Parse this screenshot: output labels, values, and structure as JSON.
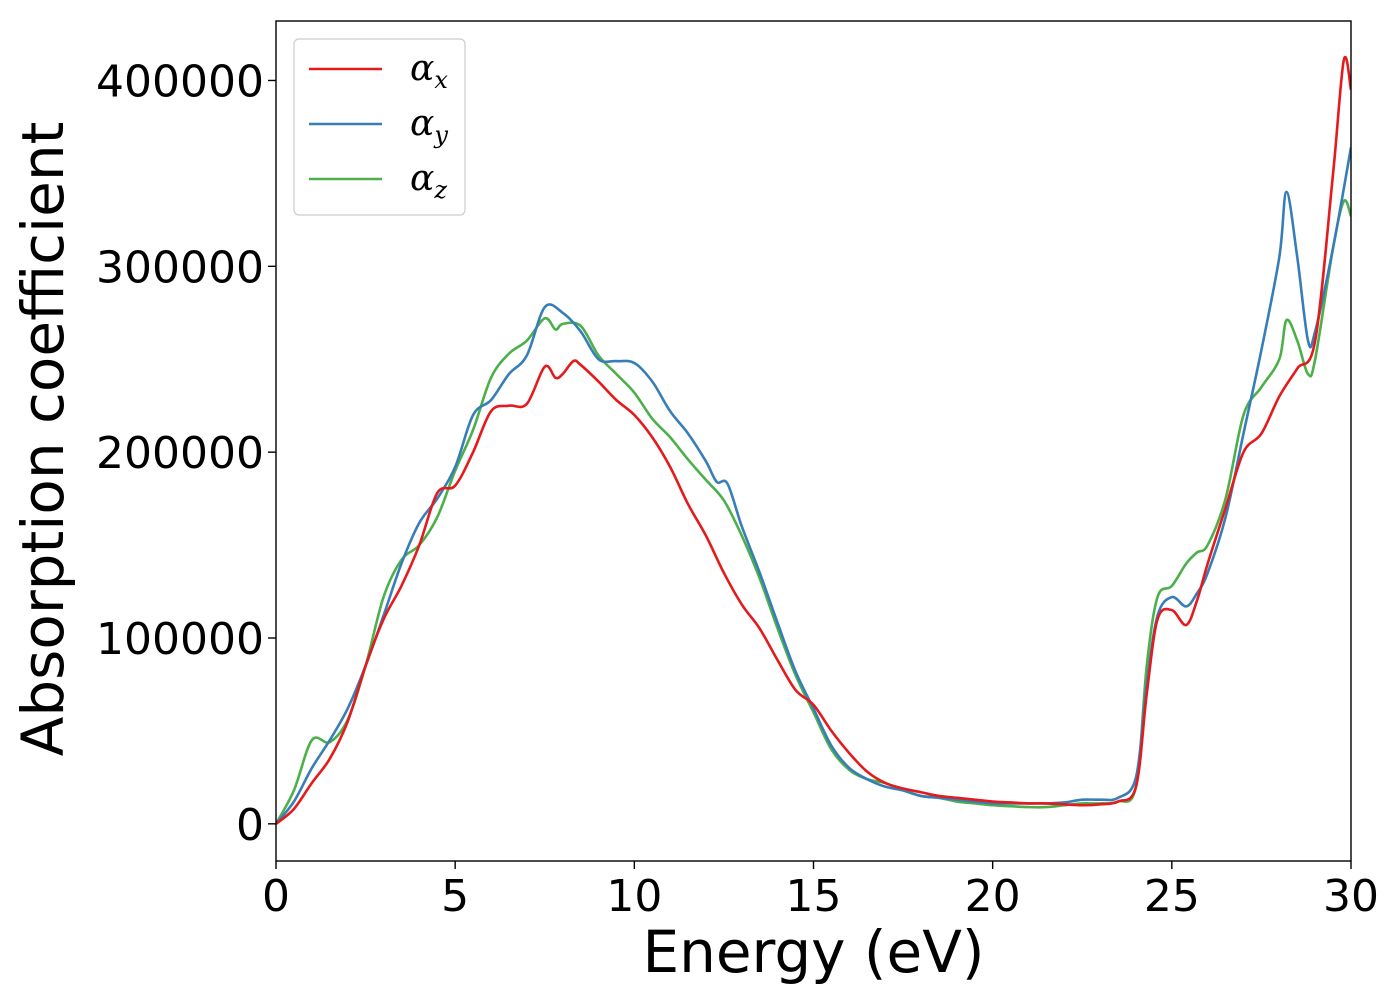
{
  "chart_data": {
    "type": "line",
    "xlabel": "Energy (eV)",
    "ylabel": "Absorption coefficient",
    "xlim": [
      0,
      30
    ],
    "ylim": [
      -20000,
      432000
    ],
    "xticks": [
      0,
      5,
      10,
      15,
      20,
      25,
      30
    ],
    "xtick_labels": [
      "0",
      "5",
      "10",
      "15",
      "20",
      "25",
      "30"
    ],
    "yticks": [
      0,
      100000,
      200000,
      300000,
      400000
    ],
    "ytick_labels": [
      "0",
      "100000",
      "200000",
      "300000",
      "400000"
    ],
    "grid": false,
    "legend": "top-left",
    "series": [
      {
        "name": "αx",
        "legend_symbol": "α",
        "legend_subscript": "x",
        "color": "#e41a1c",
        "x": [
          0,
          0.5,
          1.0,
          1.5,
          2.0,
          2.5,
          3.0,
          3.5,
          4.0,
          4.5,
          5.0,
          5.5,
          6.0,
          6.5,
          7.0,
          7.5,
          7.8,
          8.0,
          8.3,
          8.5,
          9.0,
          9.5,
          10.0,
          10.5,
          11.0,
          11.5,
          12.0,
          12.5,
          13.0,
          13.5,
          14.0,
          14.5,
          15.0,
          15.5,
          16.0,
          16.5,
          17.0,
          17.5,
          18.0,
          18.5,
          19.0,
          19.5,
          20.0,
          20.5,
          21.0,
          21.5,
          22.0,
          22.5,
          23.0,
          23.5,
          24.0,
          24.3,
          24.6,
          25.0,
          25.4,
          25.7,
          26.0,
          26.5,
          27.0,
          27.5,
          28.0,
          28.5,
          29.0,
          29.5,
          29.8,
          30.0
        ],
        "y": [
          0,
          8000,
          22000,
          35000,
          55000,
          85000,
          110000,
          128000,
          150000,
          178000,
          182000,
          200000,
          222000,
          225000,
          226000,
          246000,
          240000,
          242000,
          249000,
          247000,
          238000,
          228000,
          220000,
          208000,
          192000,
          172000,
          155000,
          135000,
          118000,
          105000,
          88000,
          72000,
          64000,
          50000,
          38000,
          28000,
          22000,
          19000,
          17000,
          15000,
          14000,
          13000,
          12000,
          11500,
          11000,
          11000,
          10500,
          10000,
          10500,
          12000,
          20000,
          70000,
          110000,
          115000,
          107000,
          120000,
          140000,
          170000,
          200000,
          210000,
          230000,
          245000,
          260000,
          350000,
          411000,
          395000
        ]
      },
      {
        "name": "αy",
        "legend_symbol": "α",
        "legend_subscript": "y",
        "color": "#377eb8",
        "x": [
          0,
          0.5,
          1.0,
          1.5,
          2.0,
          2.5,
          3.0,
          3.5,
          4.0,
          4.5,
          5.0,
          5.5,
          6.0,
          6.5,
          7.0,
          7.5,
          8.0,
          8.5,
          9.0,
          9.5,
          10.0,
          10.5,
          11.0,
          11.5,
          12.0,
          12.3,
          12.6,
          13.0,
          13.5,
          14.0,
          14.5,
          15.0,
          15.5,
          16.0,
          16.5,
          17.0,
          17.5,
          18.0,
          18.5,
          19.0,
          19.5,
          20.0,
          20.5,
          21.0,
          21.5,
          22.0,
          22.5,
          23.0,
          23.5,
          24.0,
          24.3,
          24.6,
          25.0,
          25.4,
          25.7,
          26.0,
          26.5,
          27.0,
          27.5,
          28.0,
          28.2,
          28.5,
          28.8,
          29.0,
          29.5,
          30.0
        ],
        "y": [
          0,
          12000,
          30000,
          45000,
          62000,
          85000,
          112000,
          140000,
          162000,
          175000,
          192000,
          220000,
          228000,
          242000,
          252000,
          278000,
          275000,
          265000,
          250000,
          249000,
          248000,
          238000,
          222000,
          210000,
          195000,
          184000,
          183000,
          160000,
          135000,
          108000,
          82000,
          62000,
          42000,
          30000,
          24000,
          20000,
          18000,
          15000,
          14000,
          13000,
          12000,
          11000,
          11000,
          11000,
          11000,
          11500,
          13000,
          13000,
          14000,
          25000,
          75000,
          112000,
          122000,
          117000,
          124000,
          135000,
          165000,
          210000,
          255000,
          305000,
          340000,
          305000,
          260000,
          265000,
          310000,
          364000
        ]
      },
      {
        "name": "αz",
        "legend_symbol": "α",
        "legend_subscript": "z",
        "color": "#4daf4a",
        "x": [
          0,
          0.5,
          1.0,
          1.5,
          2.0,
          2.5,
          3.0,
          3.5,
          4.0,
          4.5,
          5.0,
          5.5,
          6.0,
          6.5,
          7.0,
          7.5,
          7.8,
          8.0,
          8.5,
          9.0,
          9.5,
          10.0,
          10.5,
          11.0,
          11.5,
          12.0,
          12.5,
          13.0,
          13.5,
          14.0,
          14.5,
          15.0,
          15.5,
          16.0,
          16.5,
          17.0,
          17.5,
          18.0,
          18.5,
          19.0,
          19.5,
          20.0,
          20.5,
          21.0,
          21.5,
          22.0,
          22.5,
          23.0,
          23.5,
          24.0,
          24.3,
          24.6,
          25.0,
          25.4,
          25.7,
          26.0,
          26.5,
          27.0,
          27.5,
          28.0,
          28.2,
          28.5,
          28.8,
          29.0,
          29.5,
          29.8,
          30.0
        ],
        "y": [
          0,
          18000,
          45000,
          44000,
          56000,
          85000,
          122000,
          142000,
          150000,
          165000,
          190000,
          212000,
          240000,
          253000,
          260000,
          272000,
          266000,
          269000,
          268000,
          252000,
          242000,
          232000,
          218000,
          208000,
          196000,
          185000,
          174000,
          155000,
          132000,
          105000,
          80000,
          60000,
          40000,
          29000,
          24000,
          22000,
          18000,
          15000,
          14000,
          12000,
          11000,
          10000,
          9500,
          9000,
          9000,
          10000,
          11000,
          11000,
          12000,
          20000,
          85000,
          122000,
          128000,
          140000,
          146000,
          150000,
          175000,
          220000,
          235000,
          250000,
          271000,
          260000,
          242000,
          250000,
          310000,
          335000,
          327000
        ]
      }
    ]
  }
}
